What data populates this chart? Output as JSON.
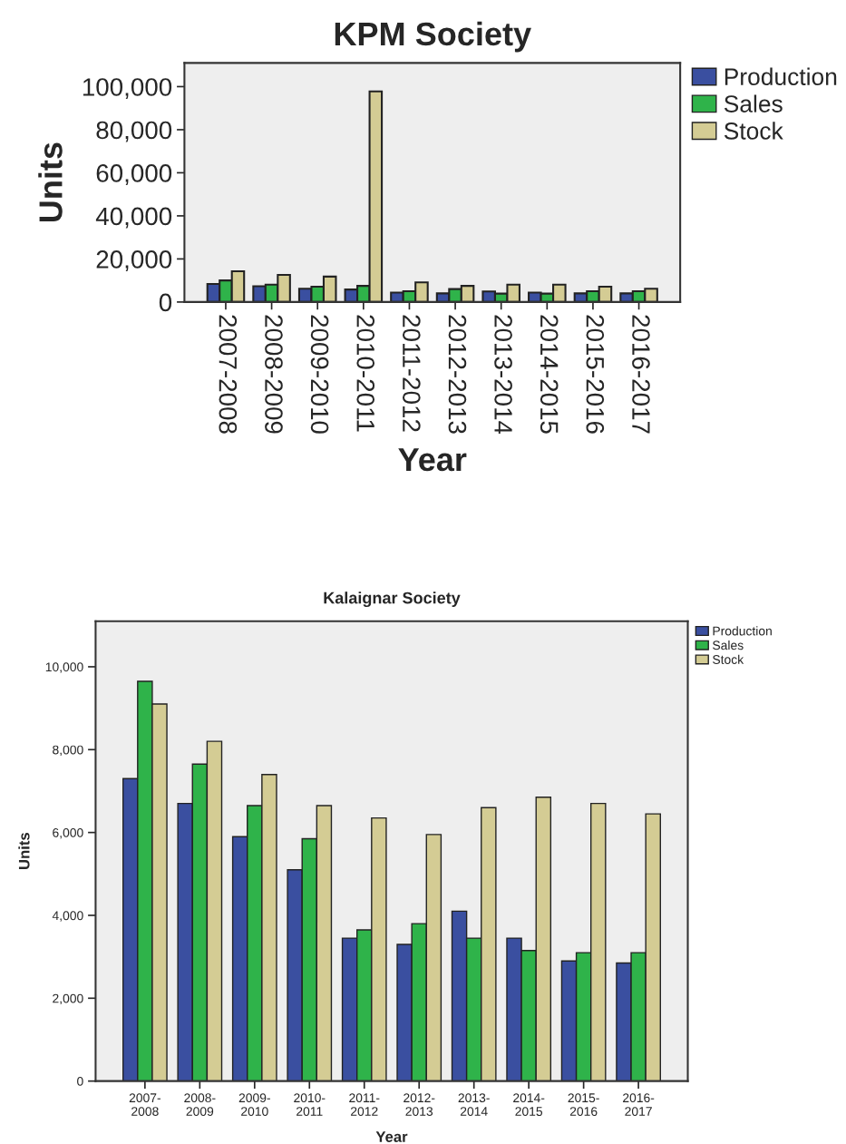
{
  "chart_data": [
    {
      "type": "bar",
      "title": "KPM Society",
      "xlabel": "Year",
      "ylabel": "Units",
      "categories": [
        "2007-2008",
        "2008-2009",
        "2009-2010",
        "2010-2011",
        "2011-2012",
        "2012-2013",
        "2013-2014",
        "2014-2015",
        "2015-2016",
        "2016-2017"
      ],
      "series": [
        {
          "name": "Production",
          "color": "#3a4fa0",
          "values": [
            8400,
            7300,
            6200,
            5800,
            4400,
            4000,
            4900,
            4400,
            4000,
            4000
          ]
        },
        {
          "name": "Sales",
          "color": "#2fb34a",
          "values": [
            10000,
            8100,
            7100,
            7500,
            5000,
            6000,
            3900,
            3900,
            5000,
            5000
          ]
        },
        {
          "name": "Stock",
          "color": "#d4cc94",
          "values": [
            14300,
            12600,
            11800,
            97800,
            9100,
            7500,
            8100,
            8100,
            7100,
            6200
          ]
        }
      ],
      "ylim": [
        0,
        111000
      ],
      "yticks": [
        {
          "value": 0,
          "label": "0"
        },
        {
          "value": 20000,
          "label": "20,000"
        },
        {
          "value": 40000,
          "label": "40,000"
        },
        {
          "value": 60000,
          "label": "60,000"
        },
        {
          "value": 80000,
          "label": "80,000"
        },
        {
          "value": 100000,
          "label": "100,000"
        }
      ],
      "legend": "right",
      "grid": false
    },
    {
      "type": "bar",
      "title": "Kalaignar Society",
      "xlabel": "Year",
      "ylabel": "Units",
      "categories": [
        "2007-\n2008",
        "2008-\n2009",
        "2009-\n2010",
        "2010-\n2011",
        "2011-\n2012",
        "2012-\n2013",
        "2013-\n2014",
        "2014-\n2015",
        "2015-\n2016",
        "2016-\n2017"
      ],
      "series": [
        {
          "name": "Production",
          "color": "#3a4fa0",
          "values": [
            7300,
            6700,
            5900,
            5100,
            3450,
            3300,
            4100,
            3450,
            2900,
            2850
          ]
        },
        {
          "name": "Sales",
          "color": "#2fb34a",
          "values": [
            9650,
            7650,
            6650,
            5850,
            3650,
            3800,
            3450,
            3150,
            3100,
            3100
          ]
        },
        {
          "name": "Stock",
          "color": "#d4cc94",
          "values": [
            9100,
            8200,
            7400,
            6650,
            6350,
            5950,
            6600,
            6850,
            6700,
            6450
          ]
        }
      ],
      "ylim": [
        0,
        11100
      ],
      "yticks": [
        {
          "value": 0,
          "label": "0"
        },
        {
          "value": 2000,
          "label": "2,000"
        },
        {
          "value": 4000,
          "label": "4,000"
        },
        {
          "value": 6000,
          "label": "6,000"
        },
        {
          "value": 8000,
          "label": "8,000"
        },
        {
          "value": 10000,
          "label": "10,000"
        }
      ],
      "legend": "top right",
      "grid": false
    }
  ]
}
